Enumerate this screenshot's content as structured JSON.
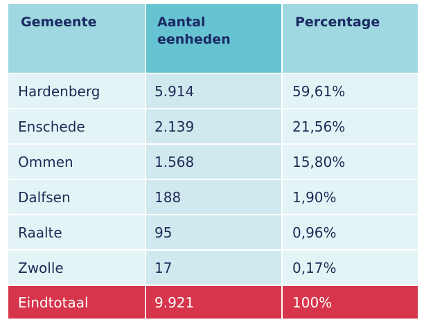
{
  "table": {
    "headers": [
      "Gemeente",
      "Aantal eenheden",
      "Percentage"
    ],
    "header_line1": "Aantal",
    "header_line2": "eenheden",
    "rows": [
      {
        "gemeente": "Hardenberg",
        "aantal": "5.914",
        "percentage": "59,61%"
      },
      {
        "gemeente": "Enschede",
        "aantal": "2.139",
        "percentage": "21,56%"
      },
      {
        "gemeente": "Ommen",
        "aantal": "1.568",
        "percentage": "15,80%"
      },
      {
        "gemeente": "Dalfsen",
        "aantal": "188",
        "percentage": "1,90%"
      },
      {
        "gemeente": "Raalte",
        "aantal": "95",
        "percentage": "0,96%"
      },
      {
        "gemeente": "Zwolle",
        "aantal": "17",
        "percentage": "0,17%"
      }
    ],
    "total": {
      "gemeente": "Eindtotaal",
      "aantal": "9.921",
      "percentage": "100%"
    }
  },
  "colors": {
    "header_light": "#9fd8e0",
    "header_dark": "#66c3d1",
    "row_light": "#e4f3f6",
    "row_mid": "#cfe9ef",
    "total": "#d6354b",
    "header_text": "#1b2a63"
  }
}
